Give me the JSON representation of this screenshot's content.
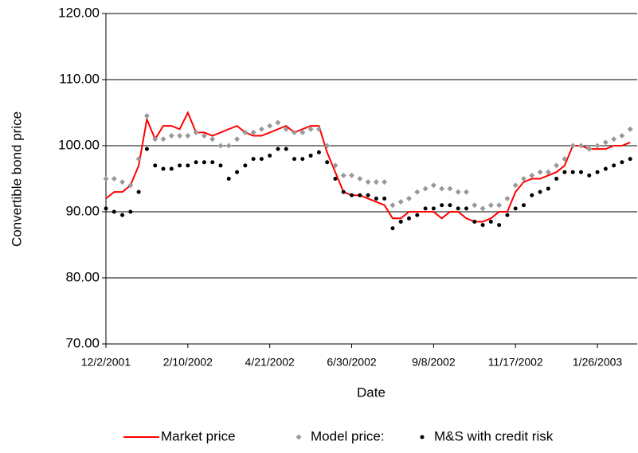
{
  "chart_data": {
    "type": "line",
    "x_label": "Date",
    "y_label": "Convertible bond price",
    "x": [
      "12/2/2001",
      "12/9/2001",
      "12/16/2001",
      "12/23/2001",
      "12/30/2001",
      "1/6/2002",
      "1/13/2002",
      "1/20/2002",
      "1/27/2002",
      "2/3/2002",
      "2/10/2002",
      "2/17/2002",
      "2/24/2002",
      "3/3/2002",
      "3/10/2002",
      "3/17/2002",
      "3/24/2002",
      "3/31/2002",
      "4/7/2002",
      "4/14/2002",
      "4/21/2002",
      "4/28/2002",
      "5/5/2002",
      "5/12/2002",
      "5/19/2002",
      "5/26/2002",
      "6/2/2002",
      "6/9/2002",
      "6/16/2002",
      "6/23/2002",
      "6/30/2002",
      "7/7/2002",
      "7/14/2002",
      "7/21/2002",
      "7/28/2002",
      "8/4/2002",
      "8/11/2002",
      "8/18/2002",
      "8/25/2002",
      "9/1/2002",
      "9/8/2002",
      "9/15/2002",
      "9/22/2002",
      "9/29/2002",
      "10/6/2002",
      "10/13/2002",
      "10/20/2002",
      "10/27/2002",
      "11/3/2002",
      "11/10/2002",
      "11/17/2002",
      "11/24/2002",
      "12/1/2002",
      "12/8/2002",
      "12/15/2002",
      "12/22/2002",
      "12/29/2002",
      "1/5/2003",
      "1/12/2003",
      "1/19/2003",
      "1/26/2003",
      "2/2/2003",
      "2/9/2003",
      "2/16/2003",
      "2/23/2003"
    ],
    "series": [
      {
        "name": "Market price",
        "color": "#ff0000",
        "marker": "line",
        "values": [
          92,
          93,
          93,
          94,
          97,
          104,
          101,
          103,
          103,
          102.5,
          105,
          102,
          102,
          101.5,
          102,
          102.5,
          103,
          102,
          101.5,
          101.5,
          102,
          102.5,
          103,
          102,
          102.5,
          103,
          103,
          99,
          96,
          93,
          92.5,
          92.5,
          92,
          91.5,
          91,
          89,
          89,
          90,
          90,
          90,
          90,
          89,
          90,
          90,
          89,
          88.5,
          88.5,
          89,
          90,
          90,
          93,
          94.5,
          95,
          95,
          95.5,
          96,
          97,
          100,
          100,
          99.5,
          99.5,
          99.5,
          100,
          100,
          100.5
        ]
      },
      {
        "name": "Model price:",
        "color": "#999999",
        "marker": "diamond",
        "values": [
          95,
          95,
          94.5,
          94,
          98,
          104.5,
          101,
          101,
          101.5,
          101.5,
          101.5,
          102,
          101.5,
          101,
          100,
          100,
          101,
          102,
          102,
          102.5,
          103,
          103.5,
          102.5,
          102,
          102,
          102.5,
          102.5,
          100,
          97,
          95.5,
          95.5,
          95,
          94.5,
          94.5,
          94.5,
          91,
          91.5,
          92,
          93,
          93.5,
          94,
          93.5,
          93.5,
          93,
          93,
          91,
          90.5,
          91,
          91,
          92,
          94,
          95,
          95.5,
          96,
          96,
          97,
          98,
          100,
          100,
          99.5,
          100,
          100.5,
          101,
          101.5,
          102.5
        ]
      },
      {
        "name": "M&S with credit risk",
        "color": "#000000",
        "marker": "dot",
        "values": [
          90.5,
          90,
          89.5,
          90,
          93,
          99.5,
          97,
          96.5,
          96.5,
          97,
          97,
          97.5,
          97.5,
          97.5,
          97,
          95,
          96,
          97,
          98,
          98,
          98.5,
          99.5,
          99.5,
          98,
          98,
          98.5,
          99,
          97.5,
          95,
          93,
          92.5,
          92.5,
          92.5,
          92,
          92,
          87.5,
          88.5,
          89,
          89.5,
          90.5,
          90.5,
          91,
          91,
          90.5,
          90.5,
          88.5,
          88,
          88.5,
          88,
          89.5,
          90.5,
          91,
          92.5,
          93,
          93.5,
          95,
          96,
          96,
          96,
          95.5,
          96,
          96.5,
          97,
          97.5,
          98
        ]
      }
    ],
    "xlim": [
      "12/2/2001",
      "3/1/2003"
    ],
    "xticks": [
      "12/2/2001",
      "2/10/2002",
      "4/21/2002",
      "6/30/2002",
      "9/8/2002",
      "11/17/2002",
      "1/26/2003"
    ],
    "ylim": [
      70,
      120
    ],
    "yticks": [
      {
        "value": 70,
        "label": "70.00"
      },
      {
        "value": 80,
        "label": "80.00"
      },
      {
        "value": 90,
        "label": "90.00"
      },
      {
        "value": 100,
        "label": "100.00"
      },
      {
        "value": 110,
        "label": "110.00"
      },
      {
        "value": 120,
        "label": "120.00"
      }
    ],
    "grid": true,
    "legend": "bottom"
  }
}
